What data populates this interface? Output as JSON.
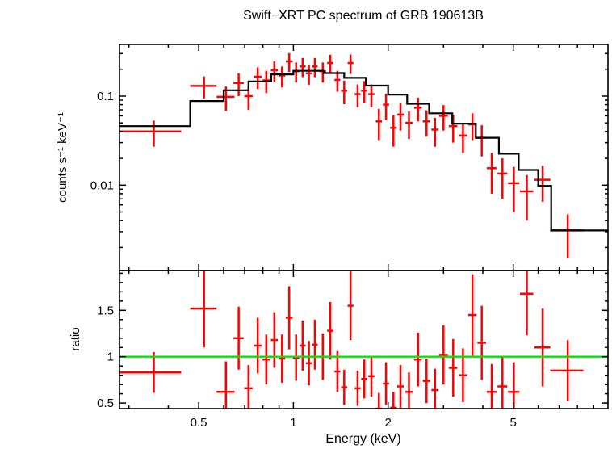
{
  "figure": {
    "title": "Swift−XRT PC spectrum of GRB 190613B",
    "xlabel": "Energy (keV)",
    "top_panel": {
      "ylabel": "counts s⁻¹ keV⁻¹"
    },
    "bottom_panel": {
      "ylabel": "ratio"
    },
    "colors": {
      "data": "#ff0000",
      "model": "#000000",
      "unity_line": "#00e600",
      "axis": "#000000",
      "background": "#ffffff"
    }
  },
  "chart_data": [
    {
      "name": "spectrum-panel",
      "type": "scatter",
      "title": "Swift−XRT PC spectrum of GRB 190613B",
      "xlabel": "Energy (keV)",
      "ylabel": "counts s⁻¹ keV⁻¹",
      "xscale": "log",
      "yscale": "log",
      "xlim": [
        0.28,
        10
      ],
      "ylim": [
        0.0011,
        0.38
      ],
      "grid": false,
      "legend": "none",
      "xticks": [
        {
          "v": 0.5,
          "label": "0.5"
        },
        {
          "v": 1,
          "label": "1"
        },
        {
          "v": 2,
          "label": "2"
        },
        {
          "v": 5,
          "label": "5"
        }
      ],
      "xminor": [
        0.3,
        0.4,
        0.6,
        0.7,
        0.8,
        0.9,
        3,
        4,
        6,
        7,
        8,
        9
      ],
      "yticks": [
        {
          "v": 0.01,
          "label": "0.01"
        },
        {
          "v": 0.1,
          "label": "0.1"
        }
      ],
      "yminor": [
        0.002,
        0.003,
        0.004,
        0.005,
        0.006,
        0.007,
        0.008,
        0.009,
        0.02,
        0.03,
        0.04,
        0.05,
        0.06,
        0.07,
        0.08,
        0.09,
        0.2,
        0.3
      ],
      "series": [
        {
          "name": "observed data",
          "marker": "cross-errorbar",
          "color": "#ff0000",
          "point_format": [
            "energy_keV",
            "energy_halfwidth_keV",
            "rate_counts_s_keV",
            "rate_error"
          ],
          "points": [
            [
              0.36,
              0.08,
              0.04,
              0.013
            ],
            [
              0.52,
              0.05,
              0.13,
              0.036
            ],
            [
              0.61,
              0.04,
              0.098,
              0.03
            ],
            [
              0.67,
              0.025,
              0.14,
              0.04
            ],
            [
              0.72,
              0.022,
              0.1,
              0.03
            ],
            [
              0.77,
              0.022,
              0.165,
              0.045
            ],
            [
              0.82,
              0.022,
              0.15,
              0.042
            ],
            [
              0.87,
              0.022,
              0.195,
              0.05
            ],
            [
              0.92,
              0.022,
              0.17,
              0.045
            ],
            [
              0.97,
              0.024,
              0.245,
              0.058
            ],
            [
              1.02,
              0.024,
              0.19,
              0.048
            ],
            [
              1.07,
              0.024,
              0.215,
              0.052
            ],
            [
              1.12,
              0.024,
              0.18,
              0.046
            ],
            [
              1.17,
              0.024,
              0.215,
              0.052
            ],
            [
              1.24,
              0.03,
              0.19,
              0.048
            ],
            [
              1.31,
              0.03,
              0.235,
              0.056
            ],
            [
              1.38,
              0.03,
              0.152,
              0.04
            ],
            [
              1.45,
              0.032,
              0.115,
              0.034
            ],
            [
              1.52,
              0.032,
              0.235,
              0.058
            ],
            [
              1.6,
              0.035,
              0.105,
              0.03
            ],
            [
              1.68,
              0.038,
              0.115,
              0.032
            ],
            [
              1.77,
              0.04,
              0.105,
              0.03
            ],
            [
              1.87,
              0.042,
              0.052,
              0.02
            ],
            [
              1.97,
              0.045,
              0.08,
              0.026
            ],
            [
              2.08,
              0.05,
              0.044,
              0.017
            ],
            [
              2.19,
              0.052,
              0.062,
              0.021
            ],
            [
              2.33,
              0.065,
              0.05,
              0.017
            ],
            [
              2.49,
              0.07,
              0.074,
              0.022
            ],
            [
              2.65,
              0.072,
              0.052,
              0.017
            ],
            [
              2.82,
              0.075,
              0.042,
              0.015
            ],
            [
              3.0,
              0.095,
              0.06,
              0.019
            ],
            [
              3.22,
              0.1,
              0.046,
              0.016
            ],
            [
              3.46,
              0.11,
              0.036,
              0.013
            ],
            [
              3.71,
              0.115,
              0.048,
              0.016
            ],
            [
              3.97,
              0.125,
              0.034,
              0.013
            ],
            [
              4.27,
              0.15,
              0.0155,
              0.0075
            ],
            [
              4.62,
              0.165,
              0.0135,
              0.0065
            ],
            [
              5.02,
              0.21,
              0.0105,
              0.0055
            ],
            [
              5.52,
              0.27,
              0.0085,
              0.0045
            ],
            [
              6.2,
              0.36,
              0.0115,
              0.005
            ],
            [
              7.45,
              0.9,
              0.0031,
              0.0016
            ]
          ]
        },
        {
          "name": "folded model",
          "type": "step",
          "color": "#000000",
          "step_format": [
            "x_low_keV",
            "x_high_keV",
            "model_rate"
          ],
          "steps": [
            [
              0.28,
              0.47,
              0.046
            ],
            [
              0.47,
              0.6,
              0.088
            ],
            [
              0.6,
              0.72,
              0.116
            ],
            [
              0.72,
              0.85,
              0.146
            ],
            [
              0.85,
              1.0,
              0.175
            ],
            [
              1.0,
              1.25,
              0.192
            ],
            [
              1.25,
              1.45,
              0.181
            ],
            [
              1.45,
              1.7,
              0.16
            ],
            [
              1.7,
              2.0,
              0.131
            ],
            [
              2.0,
              2.3,
              0.104
            ],
            [
              2.3,
              2.7,
              0.082
            ],
            [
              2.7,
              3.2,
              0.064
            ],
            [
              3.2,
              3.8,
              0.049
            ],
            [
              3.8,
              4.5,
              0.034
            ],
            [
              4.5,
              5.2,
              0.0225
            ],
            [
              5.2,
              6.0,
              0.0148
            ],
            [
              6.0,
              6.6,
              0.0098
            ],
            [
              6.6,
              10.0,
              0.0031
            ]
          ]
        }
      ]
    },
    {
      "name": "ratio-panel",
      "type": "scatter",
      "title": "",
      "xlabel": "Energy (keV)",
      "ylabel": "ratio",
      "xscale": "log",
      "yscale": "linear",
      "xlim": [
        0.28,
        10
      ],
      "ylim": [
        0.44,
        1.93
      ],
      "grid": false,
      "legend": "none",
      "xticks": [
        {
          "v": 0.5,
          "label": "0.5"
        },
        {
          "v": 1,
          "label": "1"
        },
        {
          "v": 2,
          "label": "2"
        },
        {
          "v": 5,
          "label": "5"
        }
      ],
      "xminor": [
        0.3,
        0.4,
        0.6,
        0.7,
        0.8,
        0.9,
        3,
        4,
        6,
        7,
        8,
        9
      ],
      "yticks": [
        {
          "v": 0.5,
          "label": "0.5"
        },
        {
          "v": 1,
          "label": "1"
        },
        {
          "v": 1.5,
          "label": "1.5"
        }
      ],
      "yminor": [
        0.6,
        0.7,
        0.8,
        0.9,
        1.1,
        1.2,
        1.3,
        1.4,
        1.6,
        1.7,
        1.8,
        1.9
      ],
      "series": [
        {
          "name": "data model ratio",
          "marker": "cross-errorbar",
          "color": "#ff0000",
          "point_format": [
            "energy_keV",
            "energy_halfwidth_keV",
            "ratio",
            "ratio_error"
          ],
          "points": [
            [
              0.36,
              0.08,
              0.83,
              0.22
            ],
            [
              0.52,
              0.05,
              1.52,
              0.42
            ],
            [
              0.61,
              0.04,
              0.62,
              0.33
            ],
            [
              0.67,
              0.025,
              1.2,
              0.34
            ],
            [
              0.72,
              0.022,
              0.66,
              0.25
            ],
            [
              0.77,
              0.022,
              1.12,
              0.3
            ],
            [
              0.82,
              0.022,
              0.97,
              0.27
            ],
            [
              0.87,
              0.022,
              1.18,
              0.3
            ],
            [
              0.92,
              0.022,
              0.98,
              0.26
            ],
            [
              0.97,
              0.024,
              1.42,
              0.34
            ],
            [
              1.02,
              0.024,
              0.99,
              0.25
            ],
            [
              1.07,
              0.024,
              1.12,
              0.27
            ],
            [
              1.12,
              0.024,
              0.93,
              0.24
            ],
            [
              1.17,
              0.024,
              1.13,
              0.27
            ],
            [
              1.24,
              0.03,
              1.0,
              0.25
            ],
            [
              1.31,
              0.03,
              1.28,
              0.31
            ],
            [
              1.38,
              0.03,
              0.84,
              0.22
            ],
            [
              1.45,
              0.032,
              0.67,
              0.19
            ],
            [
              1.52,
              0.032,
              1.55,
              0.37
            ],
            [
              1.6,
              0.035,
              0.66,
              0.19
            ],
            [
              1.68,
              0.038,
              0.76,
              0.21
            ],
            [
              1.77,
              0.04,
              0.79,
              0.22
            ],
            [
              1.87,
              0.042,
              0.44,
              0.17
            ],
            [
              1.97,
              0.045,
              0.71,
              0.23
            ],
            [
              2.08,
              0.05,
              0.45,
              0.17
            ],
            [
              2.19,
              0.052,
              0.68,
              0.23
            ],
            [
              2.33,
              0.065,
              0.62,
              0.21
            ],
            [
              2.49,
              0.07,
              0.97,
              0.29
            ],
            [
              2.65,
              0.072,
              0.74,
              0.24
            ],
            [
              2.82,
              0.075,
              0.64,
              0.23
            ],
            [
              3.0,
              0.095,
              1.02,
              0.32
            ],
            [
              3.22,
              0.1,
              0.88,
              0.31
            ],
            [
              3.46,
              0.11,
              0.8,
              0.29
            ],
            [
              3.71,
              0.115,
              1.45,
              0.44
            ],
            [
              3.97,
              0.125,
              1.15,
              0.4
            ],
            [
              4.27,
              0.15,
              0.62,
              0.3
            ],
            [
              4.62,
              0.165,
              0.68,
              0.33
            ],
            [
              5.02,
              0.21,
              0.62,
              0.32
            ],
            [
              5.52,
              0.27,
              1.68,
              0.45
            ],
            [
              6.2,
              0.36,
              1.1,
              0.42
            ],
            [
              7.45,
              0.9,
              0.85,
              0.33
            ]
          ]
        },
        {
          "name": "unity line",
          "type": "hline",
          "y": 1,
          "color": "#00e600"
        }
      ]
    }
  ]
}
